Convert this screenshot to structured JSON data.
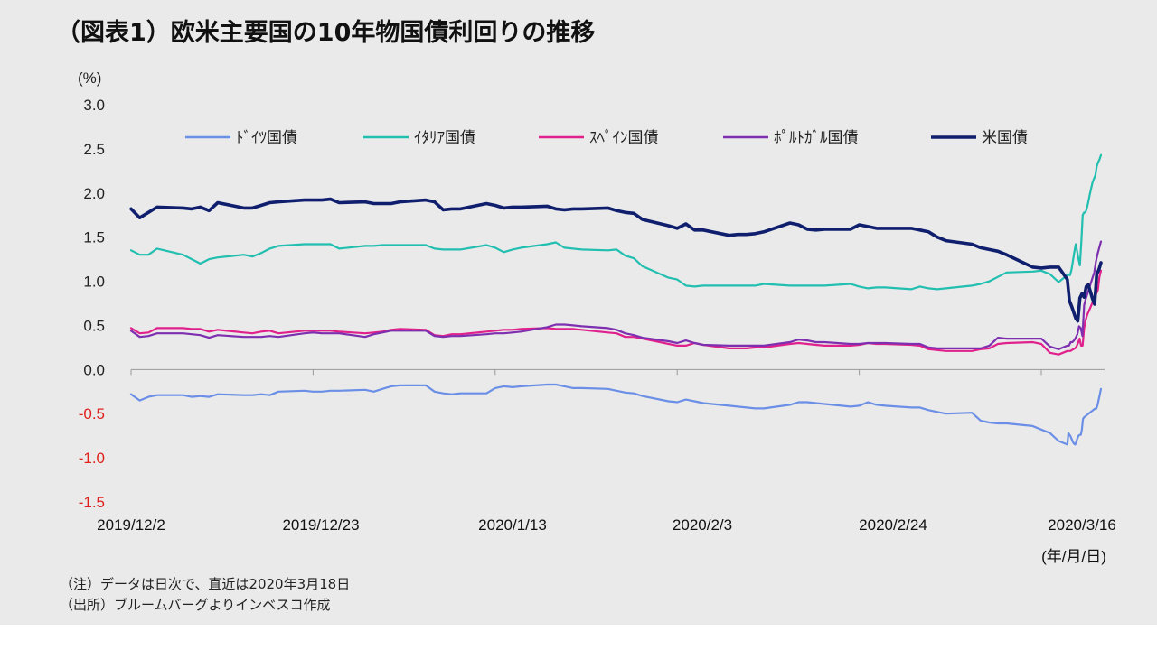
{
  "title": "（図表1）欧米主要国の10年物国債利回りの推移",
  "notes": [
    "（注）データは日次で、直近は2020年3月18日",
    "（出所）ブルームバーグよりインベスコ作成"
  ],
  "chart_data": {
    "type": "line",
    "title": "（図表1）欧米主要国の10年物国債利回りの推移",
    "ylabel": "(%)",
    "xlabel": "(年/月/日)",
    "ylim": [
      -1.5,
      3.0
    ],
    "yticks": [
      "3.0",
      "2.5",
      "2.0",
      "1.5",
      "1.0",
      "0.5",
      "0.0",
      "-0.5",
      "-1.0",
      "-1.5"
    ],
    "xticks": [
      "2019/12/2",
      "2019/12/23",
      "2020/1/13",
      "2020/2/3",
      "2020/2/24",
      "2020/3/16"
    ],
    "negative_tick_color": "#e0201a",
    "grid": false,
    "legend_position": "top",
    "x_days": [
      0,
      1,
      2,
      3,
      6,
      7,
      8,
      9,
      10,
      13,
      14,
      15,
      16,
      17,
      20,
      21,
      22,
      23,
      24,
      27,
      28,
      29,
      30,
      31,
      34,
      35,
      36,
      37,
      38,
      41,
      42,
      43,
      44,
      45,
      48,
      49,
      50,
      51,
      52,
      55,
      56,
      57,
      58,
      59,
      62,
      63,
      64,
      65,
      66,
      69,
      70,
      71,
      72,
      73,
      76,
      77,
      78,
      79,
      80,
      83,
      84,
      85,
      86,
      87,
      90,
      91,
      92,
      93,
      94,
      97,
      98,
      99,
      100,
      101,
      104,
      105,
      106,
      107,
      108
    ],
    "series": [
      {
        "name": "ﾄﾞｲﾂ国債",
        "color": "#6b8fe6",
        "values": [
          -0.28,
          -0.35,
          -0.31,
          -0.29,
          -0.29,
          -0.31,
          -0.3,
          -0.31,
          -0.28,
          -0.29,
          -0.29,
          -0.28,
          -0.29,
          -0.25,
          -0.24,
          -0.25,
          -0.25,
          -0.24,
          -0.24,
          -0.23,
          -0.25,
          -0.22,
          -0.19,
          -0.18,
          -0.18,
          -0.25,
          -0.27,
          -0.28,
          -0.27,
          -0.27,
          -0.21,
          -0.19,
          -0.2,
          -0.19,
          -0.17,
          -0.17,
          -0.19,
          -0.21,
          -0.21,
          -0.22,
          -0.24,
          -0.26,
          -0.27,
          -0.3,
          -0.36,
          -0.37,
          -0.34,
          -0.36,
          -0.38,
          -0.41,
          -0.42,
          -0.43,
          -0.44,
          -0.44,
          -0.4,
          -0.37,
          -0.37,
          -0.38,
          -0.39,
          -0.42,
          -0.41,
          -0.37,
          -0.4,
          -0.41,
          -0.43,
          -0.43,
          -0.46,
          -0.48,
          -0.5,
          -0.49,
          -0.58,
          -0.6,
          -0.61,
          -0.61,
          -0.64,
          -0.68,
          -0.72,
          -0.81,
          -0.85
        ]
      },
      {
        "name": "ｲﾀﾘｱ国債",
        "color": "#22bfb0",
        "values": [
          1.35,
          1.3,
          1.3,
          1.37,
          1.3,
          1.25,
          1.2,
          1.25,
          1.27,
          1.3,
          1.28,
          1.32,
          1.37,
          1.4,
          1.42,
          1.42,
          1.42,
          1.42,
          1.37,
          1.4,
          1.4,
          1.41,
          1.41,
          1.41,
          1.41,
          1.37,
          1.36,
          1.36,
          1.36,
          1.41,
          1.38,
          1.33,
          1.36,
          1.38,
          1.42,
          1.44,
          1.38,
          1.37,
          1.36,
          1.35,
          1.36,
          1.29,
          1.26,
          1.17,
          1.04,
          1.02,
          0.95,
          0.94,
          0.95,
          0.95,
          0.95,
          0.95,
          0.95,
          0.97,
          0.95,
          0.95,
          0.95,
          0.95,
          0.95,
          0.97,
          0.94,
          0.92,
          0.93,
          0.93,
          0.91,
          0.94,
          0.92,
          0.91,
          0.92,
          0.95,
          0.97,
          1.0,
          1.05,
          1.1,
          1.11,
          1.12,
          1.08,
          0.99,
          1.07
        ]
      },
      {
        "name": "ｽﾍﾟｲﾝ国債",
        "color": "#e0208c",
        "values": [
          0.47,
          0.41,
          0.42,
          0.47,
          0.47,
          0.46,
          0.46,
          0.43,
          0.45,
          0.42,
          0.41,
          0.43,
          0.44,
          0.41,
          0.44,
          0.44,
          0.44,
          0.44,
          0.43,
          0.41,
          0.42,
          0.43,
          0.45,
          0.46,
          0.45,
          0.39,
          0.38,
          0.4,
          0.4,
          0.43,
          0.44,
          0.45,
          0.45,
          0.46,
          0.47,
          0.46,
          0.46,
          0.46,
          0.45,
          0.42,
          0.41,
          0.37,
          0.37,
          0.35,
          0.29,
          0.27,
          0.27,
          0.3,
          0.28,
          0.24,
          0.24,
          0.24,
          0.25,
          0.25,
          0.29,
          0.3,
          0.29,
          0.28,
          0.27,
          0.27,
          0.28,
          0.3,
          0.29,
          0.29,
          0.28,
          0.27,
          0.23,
          0.22,
          0.21,
          0.21,
          0.23,
          0.24,
          0.29,
          0.3,
          0.31,
          0.29,
          0.19,
          0.17,
          0.21
        ]
      },
      {
        "name": "ﾎﾟﾙﾄｶﾞﾙ国債",
        "color": "#7d2fb0",
        "values": [
          0.44,
          0.37,
          0.38,
          0.41,
          0.41,
          0.4,
          0.39,
          0.36,
          0.39,
          0.37,
          0.37,
          0.37,
          0.38,
          0.37,
          0.41,
          0.42,
          0.41,
          0.41,
          0.41,
          0.37,
          0.4,
          0.42,
          0.44,
          0.44,
          0.44,
          0.38,
          0.37,
          0.38,
          0.38,
          0.4,
          0.41,
          0.41,
          0.42,
          0.43,
          0.48,
          0.51,
          0.51,
          0.5,
          0.49,
          0.47,
          0.45,
          0.41,
          0.39,
          0.36,
          0.32,
          0.3,
          0.33,
          0.3,
          0.28,
          0.27,
          0.27,
          0.27,
          0.27,
          0.27,
          0.31,
          0.34,
          0.33,
          0.31,
          0.31,
          0.29,
          0.29,
          0.3,
          0.3,
          0.3,
          0.29,
          0.29,
          0.25,
          0.24,
          0.24,
          0.24,
          0.24,
          0.27,
          0.36,
          0.35,
          0.35,
          0.35,
          0.26,
          0.23,
          0.27
        ]
      },
      {
        "name": "米国債",
        "color": "#0f1f6e",
        "values": [
          1.82,
          1.72,
          1.78,
          1.84,
          1.83,
          1.82,
          1.84,
          1.8,
          1.89,
          1.83,
          1.83,
          1.86,
          1.89,
          1.9,
          1.92,
          1.92,
          1.92,
          1.93,
          1.89,
          1.9,
          1.88,
          1.88,
          1.88,
          1.9,
          1.92,
          1.9,
          1.81,
          1.82,
          1.82,
          1.88,
          1.86,
          1.83,
          1.84,
          1.84,
          1.85,
          1.82,
          1.81,
          1.82,
          1.82,
          1.83,
          1.8,
          1.78,
          1.77,
          1.7,
          1.63,
          1.6,
          1.65,
          1.58,
          1.58,
          1.52,
          1.53,
          1.53,
          1.54,
          1.56,
          1.66,
          1.64,
          1.59,
          1.58,
          1.59,
          1.59,
          1.64,
          1.62,
          1.6,
          1.6,
          1.6,
          1.58,
          1.56,
          1.5,
          1.46,
          1.42,
          1.38,
          1.36,
          1.34,
          1.3,
          1.16,
          1.15,
          1.16,
          1.16,
          1.02
        ]
      }
    ],
    "extension": {
      "x_days": [
        112,
        113,
        114,
        115,
        116,
        117,
        118,
        119,
        120,
        121,
        122,
        123,
        124,
        125,
        126,
        127,
        128,
        129,
        130,
        131,
        132,
        133,
        134,
        135,
        136,
        137,
        138,
        139,
        140,
        141,
        142,
        143,
        144,
        145,
        146,
        147,
        148,
        149,
        150,
        151,
        152,
        153,
        154,
        155,
        156,
        157,
        158,
        159,
        160,
        161,
        162,
        163,
        164,
        165,
        166,
        167,
        168
      ],
      "values": [
        [
          -0.72,
          -0.74,
          -0.76,
          -0.79,
          -0.82,
          -0.84,
          -0.85,
          -0.82,
          -0.78,
          -0.75,
          -0.74,
          -0.74,
          -0.68,
          -0.56,
          -0.54,
          -0.53,
          -0.52,
          -0.51,
          -0.5,
          -0.49,
          -0.48,
          -0.47,
          -0.46,
          -0.45,
          -0.44,
          -0.44,
          -0.4,
          -0.34,
          -0.28,
          -0.22
        ],
        [
          1.07,
          1.07,
          1.13,
          1.23,
          1.33,
          1.42,
          1.34,
          1.25,
          1.18,
          1.45,
          1.75,
          1.78,
          1.78,
          1.83,
          1.9,
          1.98,
          2.05,
          2.12,
          2.16,
          2.2,
          2.3,
          2.35,
          2.38,
          2.43
        ],
        [
          0.21,
          0.21,
          0.22,
          0.23,
          0.24,
          0.26,
          0.3,
          0.35,
          0.27,
          0.27,
          0.47,
          0.56,
          0.62,
          0.66,
          0.7,
          0.74,
          0.78,
          0.82,
          0.86,
          0.9,
          1.05,
          1.12
        ],
        [
          0.27,
          0.31,
          0.31,
          0.33,
          0.36,
          0.4,
          0.49,
          0.47,
          0.38,
          0.73,
          0.8,
          0.86,
          0.92,
          0.98,
          1.04,
          1.1,
          1.22,
          1.31,
          1.38,
          1.45
        ],
        [
          0.78,
          0.72,
          0.65,
          0.58,
          0.55,
          0.81,
          0.86,
          0.82,
          0.94,
          0.96,
          0.88,
          0.8,
          0.74,
          1.08,
          1.13,
          1.21
        ]
      ]
    }
  }
}
